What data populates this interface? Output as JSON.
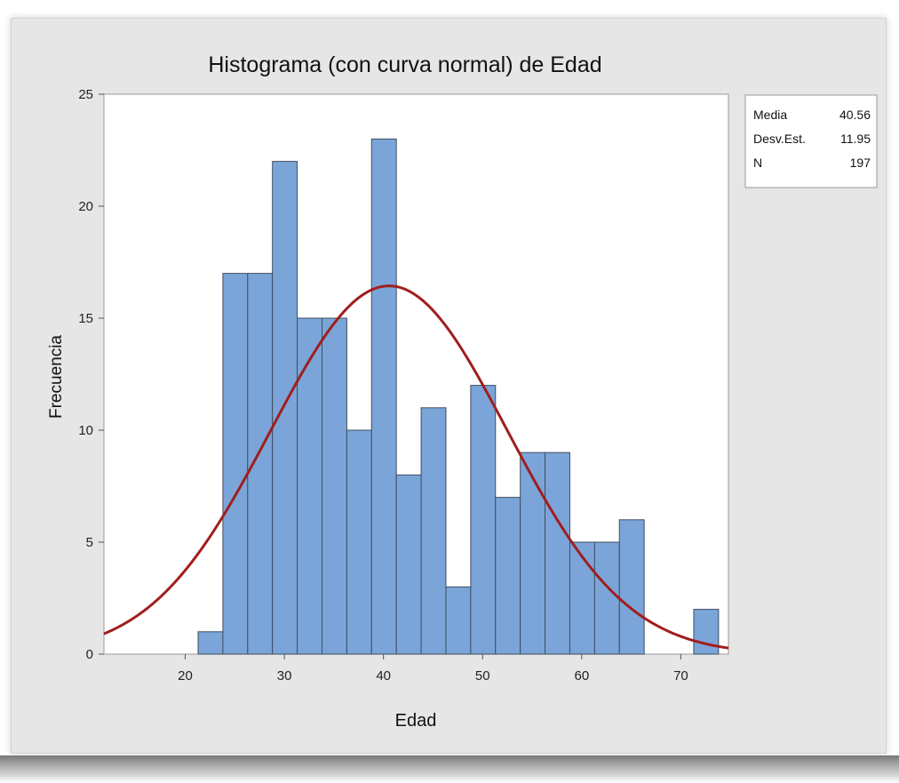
{
  "chart_data": {
    "type": "bar",
    "title": "Histograma (con curva normal) de Edad",
    "xlabel": "Edad",
    "ylabel": "Frecuencia",
    "xlim": [
      11.8,
      74.8
    ],
    "ylim": [
      0,
      25
    ],
    "x_ticks": [
      20,
      30,
      40,
      50,
      60,
      70
    ],
    "y_ticks": [
      0,
      5,
      10,
      15,
      20,
      25
    ],
    "bin_width": 2.5,
    "bins": [
      {
        "start": 21.3,
        "count": 1
      },
      {
        "start": 23.8,
        "count": 17
      },
      {
        "start": 26.3,
        "count": 17
      },
      {
        "start": 28.8,
        "count": 22
      },
      {
        "start": 31.3,
        "count": 15
      },
      {
        "start": 33.8,
        "count": 15
      },
      {
        "start": 36.3,
        "count": 10
      },
      {
        "start": 38.8,
        "count": 23
      },
      {
        "start": 41.3,
        "count": 8
      },
      {
        "start": 43.8,
        "count": 11
      },
      {
        "start": 46.3,
        "count": 3
      },
      {
        "start": 48.8,
        "count": 12
      },
      {
        "start": 51.3,
        "count": 7
      },
      {
        "start": 53.8,
        "count": 9
      },
      {
        "start": 56.3,
        "count": 9
      },
      {
        "start": 58.8,
        "count": 5
      },
      {
        "start": 61.3,
        "count": 5
      },
      {
        "start": 63.8,
        "count": 6
      },
      {
        "start": 71.3,
        "count": 2
      }
    ],
    "normal_curve": {
      "mean": 40.56,
      "sd": 11.95,
      "n": 197
    },
    "legend": {
      "position": "top-right",
      "rows": [
        {
          "label": "Media",
          "value": "40.56"
        },
        {
          "label": "Desv.Est.",
          "value": "11.95"
        },
        {
          "label": "N",
          "value": "197"
        }
      ]
    },
    "colors": {
      "bar_fill": "#7ba5d9",
      "bar_stroke": "#3f4e60",
      "curve": "#a01e1e",
      "plot_bg": "#ffffff",
      "frame_bg": "#e6e6e6"
    }
  }
}
